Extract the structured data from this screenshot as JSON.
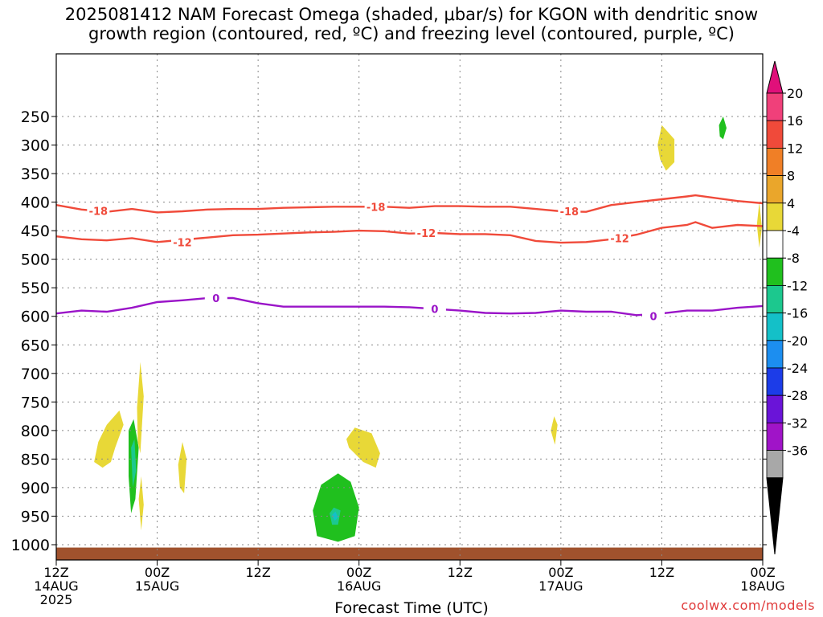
{
  "title": "2025081412 NAM Forecast Omega (shaded, μbar/s) for KGON with dendritic snow\ngrowth region (contoured, red, ºC) and freezing level (contoured, purple, ºC)",
  "credit": "coolwx.com/models",
  "chart_data": {
    "type": "contour",
    "xlabel": "Forecast Time (UTC)",
    "x_range_hours": [
      0,
      84
    ],
    "y_range_hPa": [
      1040,
      200
    ],
    "y_ticks": [
      250,
      300,
      350,
      400,
      450,
      500,
      550,
      600,
      650,
      700,
      750,
      800,
      850,
      900,
      950,
      1000
    ],
    "x_ticks": [
      {
        "hour": 0,
        "lines": [
          "12Z",
          "14AUG",
          "2025"
        ]
      },
      {
        "hour": 12,
        "lines": [
          "00Z",
          "15AUG"
        ]
      },
      {
        "hour": 24,
        "lines": [
          "12Z"
        ]
      },
      {
        "hour": 36,
        "lines": [
          "00Z",
          "16AUG"
        ]
      },
      {
        "hour": 48,
        "lines": [
          "12Z"
        ]
      },
      {
        "hour": 60,
        "lines": [
          "00Z",
          "17AUG"
        ]
      },
      {
        "hour": 72,
        "lines": [
          "12Z"
        ]
      },
      {
        "hour": 84,
        "lines": [
          "00Z",
          "18AUG"
        ]
      }
    ],
    "grid": true,
    "colorbar": {
      "labels": [
        "20",
        "16",
        "12",
        "8",
        "4",
        "-4",
        "-8",
        "-12",
        "-16",
        "-20",
        "-24",
        "-28",
        "-32",
        "-36"
      ],
      "colors": [
        "#f0407a",
        "#f04a3a",
        "#f07f26",
        "#eaa62b",
        "#e8d837",
        "#ffffff",
        "#20c01e",
        "#1cc88e",
        "#14c0c8",
        "#1c8ef0",
        "#1c3ce8",
        "#6a14d8",
        "#a014c8",
        "#a8a8a8"
      ],
      "top_arrow": "#e0107a",
      "bottom_arrow": "#000000"
    },
    "contours": [
      {
        "label": "-18",
        "color": "#f04a3a",
        "points": [
          [
            0,
            405
          ],
          [
            3,
            413
          ],
          [
            6,
            417
          ],
          [
            9,
            412
          ],
          [
            12,
            418
          ],
          [
            15,
            416
          ],
          [
            18,
            413
          ],
          [
            21,
            412
          ],
          [
            24,
            412
          ],
          [
            27,
            410
          ],
          [
            30,
            409
          ],
          [
            33,
            408
          ],
          [
            36,
            408
          ],
          [
            39,
            408
          ],
          [
            42,
            410
          ],
          [
            45,
            407
          ],
          [
            48,
            407
          ],
          [
            51,
            408
          ],
          [
            54,
            408
          ],
          [
            57,
            412
          ],
          [
            60,
            416
          ],
          [
            63,
            417
          ],
          [
            66,
            405
          ],
          [
            69,
            400
          ],
          [
            72,
            395
          ],
          [
            75,
            390
          ],
          [
            76,
            388
          ],
          [
            78,
            392
          ],
          [
            81,
            398
          ],
          [
            84,
            402
          ]
        ],
        "label_at": [
          [
            5,
            415
          ],
          [
            38,
            408
          ],
          [
            61,
            416
          ]
        ]
      },
      {
        "label": "-12",
        "color": "#f04a3a",
        "points": [
          [
            0,
            460
          ],
          [
            3,
            465
          ],
          [
            6,
            467
          ],
          [
            9,
            463
          ],
          [
            12,
            470
          ],
          [
            15,
            466
          ],
          [
            18,
            462
          ],
          [
            21,
            458
          ],
          [
            24,
            457
          ],
          [
            27,
            455
          ],
          [
            30,
            453
          ],
          [
            33,
            452
          ],
          [
            36,
            450
          ],
          [
            39,
            451
          ],
          [
            42,
            455
          ],
          [
            45,
            454
          ],
          [
            48,
            456
          ],
          [
            51,
            456
          ],
          [
            54,
            458
          ],
          [
            57,
            468
          ],
          [
            60,
            471
          ],
          [
            63,
            470
          ],
          [
            66,
            465
          ],
          [
            69,
            457
          ],
          [
            72,
            445
          ],
          [
            75,
            440
          ],
          [
            76,
            435
          ],
          [
            78,
            445
          ],
          [
            81,
            440
          ],
          [
            84,
            442
          ]
        ],
        "label_at": [
          [
            15,
            470
          ],
          [
            44,
            454
          ],
          [
            67,
            463
          ]
        ]
      },
      {
        "label": "0",
        "color": "#9a14c8",
        "points": [
          [
            0,
            595
          ],
          [
            3,
            590
          ],
          [
            6,
            592
          ],
          [
            9,
            585
          ],
          [
            12,
            575
          ],
          [
            15,
            572
          ],
          [
            18,
            568
          ],
          [
            21,
            568
          ],
          [
            24,
            577
          ],
          [
            27,
            583
          ],
          [
            30,
            583
          ],
          [
            33,
            583
          ],
          [
            36,
            583
          ],
          [
            39,
            583
          ],
          [
            42,
            584
          ],
          [
            45,
            587
          ],
          [
            48,
            590
          ],
          [
            51,
            594
          ],
          [
            54,
            595
          ],
          [
            57,
            594
          ],
          [
            60,
            590
          ],
          [
            63,
            592
          ],
          [
            66,
            592
          ],
          [
            69,
            598
          ],
          [
            72,
            595
          ],
          [
            75,
            590
          ],
          [
            78,
            590
          ],
          [
            81,
            585
          ],
          [
            84,
            582
          ]
        ],
        "label_at": [
          [
            19,
            568
          ],
          [
            45,
            587
          ],
          [
            71,
            600
          ]
        ]
      }
    ],
    "omega_regions": [
      {
        "color": "#e8d837",
        "points": [
          [
            4.5,
            855
          ],
          [
            5,
            820
          ],
          [
            6,
            790
          ],
          [
            7.5,
            765
          ],
          [
            8,
            790
          ],
          [
            7,
            830
          ],
          [
            6.5,
            855
          ],
          [
            5.5,
            865
          ]
        ]
      },
      {
        "color": "#20c01e",
        "points": [
          [
            8.6,
            800
          ],
          [
            9.2,
            780
          ],
          [
            9.8,
            830
          ],
          [
            9.4,
            920
          ],
          [
            8.9,
            945
          ],
          [
            8.6,
            880
          ]
        ]
      },
      {
        "color": "#1cc88e",
        "points": [
          [
            8.9,
            830
          ],
          [
            9.3,
            815
          ],
          [
            9.5,
            870
          ],
          [
            9.1,
            900
          ]
        ]
      },
      {
        "color": "#e8d837",
        "points": [
          [
            9.6,
            760
          ],
          [
            10,
            680
          ],
          [
            10.4,
            740
          ],
          [
            10,
            840
          ],
          [
            9.7,
            820
          ]
        ]
      },
      {
        "color": "#e8d837",
        "points": [
          [
            9.8,
            920
          ],
          [
            10.1,
            880
          ],
          [
            10.4,
            930
          ],
          [
            10.1,
            975
          ]
        ]
      },
      {
        "color": "#e8d837",
        "points": [
          [
            14.5,
            860
          ],
          [
            15,
            820
          ],
          [
            15.5,
            850
          ],
          [
            15.2,
            910
          ],
          [
            14.7,
            900
          ]
        ]
      },
      {
        "color": "#20c01e",
        "points": [
          [
            30.5,
            940
          ],
          [
            31.5,
            895
          ],
          [
            33.5,
            875
          ],
          [
            35,
            890
          ],
          [
            36,
            935
          ],
          [
            35.5,
            985
          ],
          [
            33.5,
            995
          ],
          [
            31,
            985
          ]
        ]
      },
      {
        "color": "#1cc88e",
        "points": [
          [
            32.5,
            945
          ],
          [
            33,
            935
          ],
          [
            33.8,
            940
          ],
          [
            33.5,
            965
          ],
          [
            32.8,
            965
          ]
        ]
      },
      {
        "color": "#14c0c8",
        "points": [
          [
            32.8,
            948
          ],
          [
            33.2,
            942
          ],
          [
            33.5,
            952
          ],
          [
            33.1,
            958
          ]
        ]
      },
      {
        "color": "#e8d837",
        "points": [
          [
            34.5,
            815
          ],
          [
            35.5,
            795
          ],
          [
            37.5,
            805
          ],
          [
            38.5,
            840
          ],
          [
            38,
            865
          ],
          [
            36.5,
            855
          ],
          [
            34.8,
            830
          ]
        ]
      },
      {
        "color": "#e8d837",
        "points": [
          [
            58.8,
            800
          ],
          [
            59.2,
            775
          ],
          [
            59.6,
            790
          ],
          [
            59.3,
            825
          ]
        ]
      },
      {
        "color": "#e8d837",
        "points": [
          [
            71.5,
            300
          ],
          [
            72,
            265
          ],
          [
            73.5,
            290
          ],
          [
            73.5,
            330
          ],
          [
            72.5,
            345
          ],
          [
            71.8,
            325
          ]
        ]
      },
      {
        "color": "#20c01e",
        "points": [
          [
            78.8,
            265
          ],
          [
            79.3,
            250
          ],
          [
            79.7,
            270
          ],
          [
            79.3,
            290
          ],
          [
            78.9,
            285
          ]
        ]
      },
      {
        "color": "#e8d837",
        "points": [
          [
            83.3,
            440
          ],
          [
            83.6,
            400
          ],
          [
            83.9,
            445
          ],
          [
            83.6,
            480
          ]
        ]
      }
    ],
    "terrain": {
      "color": "#a0522d",
      "top_hPa": 1005
    }
  }
}
